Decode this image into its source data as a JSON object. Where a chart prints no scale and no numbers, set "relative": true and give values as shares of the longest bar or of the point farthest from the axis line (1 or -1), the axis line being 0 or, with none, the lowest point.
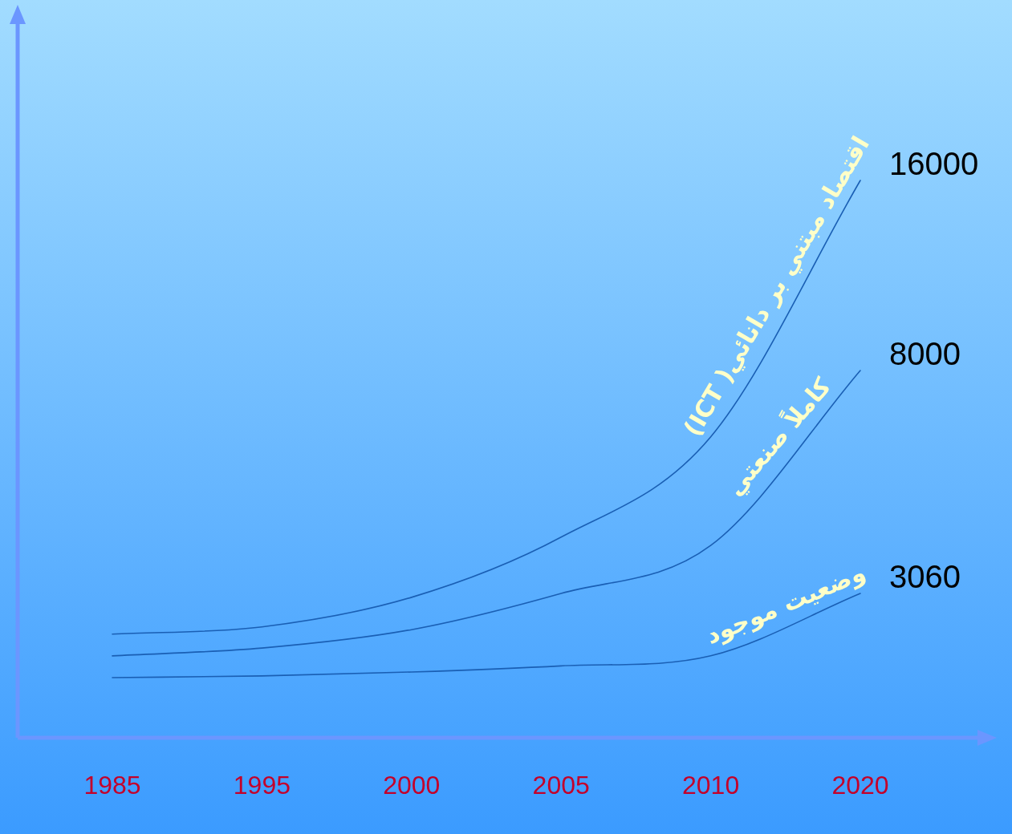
{
  "chart_data": {
    "type": "line",
    "relative": true,
    "categories": [
      "1985",
      "1995",
      "2000",
      "2005",
      "2010",
      "2020"
    ],
    "series": [
      {
        "name": "اقتصاد مبتني بر دانائي( ICT)",
        "color": "#1a5fb4",
        "values": [
          0.186,
          0.199,
          0.252,
          0.36,
          0.54,
          1
        ]
      },
      {
        "name": "كاملاً صنعتي",
        "color": "#1a5fb4",
        "values": [
          0.147,
          0.161,
          0.194,
          0.259,
          0.345,
          0.659
        ]
      },
      {
        "name": "وضعيت موجود",
        "color": "#1a5fb4",
        "values": [
          0.108,
          0.111,
          0.118,
          0.129,
          0.147,
          0.259
        ]
      }
    ],
    "annotations": [
      "16000",
      "8000",
      "3060"
    ],
    "legend": false,
    "grid": false,
    "marker": "none",
    "line_style": "solid"
  }
}
